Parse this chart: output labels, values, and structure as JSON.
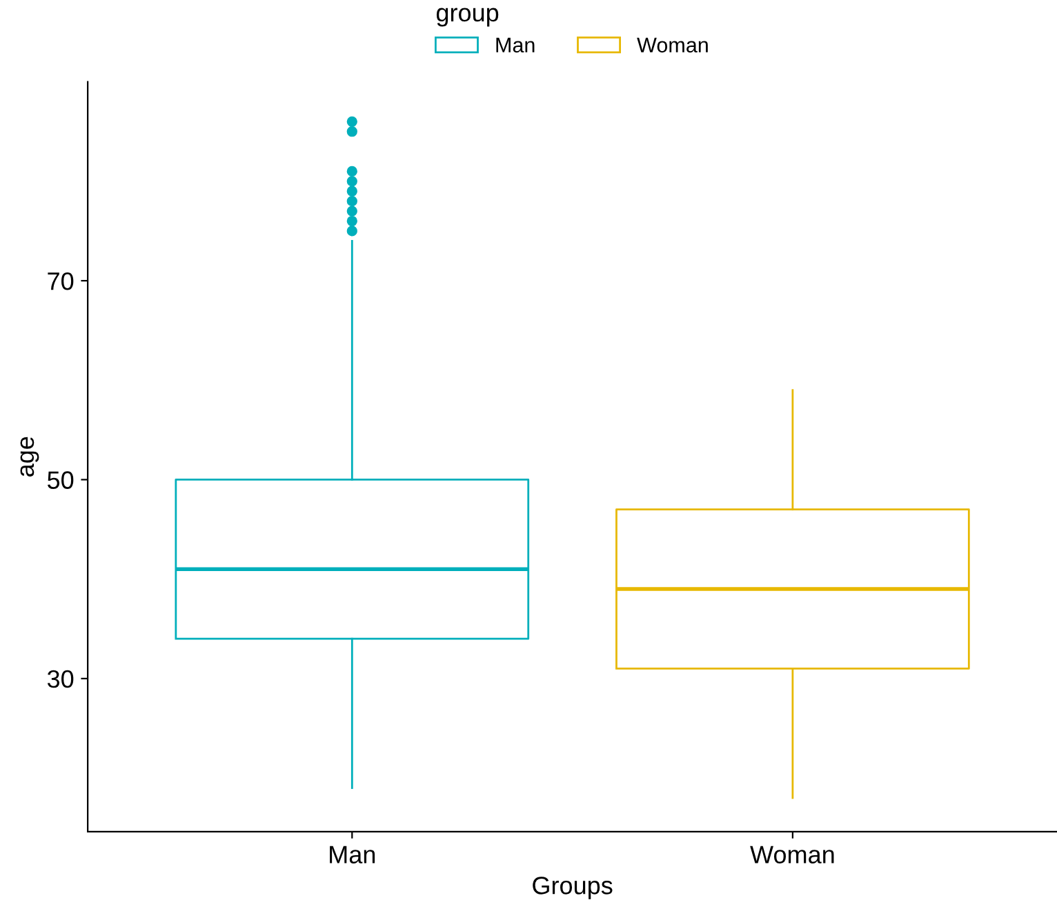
{
  "chart_data": {
    "type": "box",
    "xlabel": "Groups",
    "ylabel": "age",
    "legend_title": "group",
    "legend": "top",
    "grid": false,
    "categories": [
      "Man",
      "Woman"
    ],
    "series": [
      {
        "name": "Man",
        "color": "#00afbb",
        "boxes": [
          {
            "low": 19,
            "q1": 34,
            "median": 41,
            "q3": 50,
            "high": 74,
            "outliers": [
              75,
              76,
              77,
              78,
              79,
              80,
              81,
              85,
              86
            ]
          },
          null
        ]
      },
      {
        "name": "Woman",
        "color": "#e7b800",
        "boxes": [
          null,
          {
            "low": 18,
            "q1": 31,
            "median": 39,
            "q3": 47,
            "high": 59
          }
        ]
      }
    ],
    "ylim": [
      14.6,
      90
    ],
    "yticks": [
      30,
      50,
      70
    ]
  }
}
